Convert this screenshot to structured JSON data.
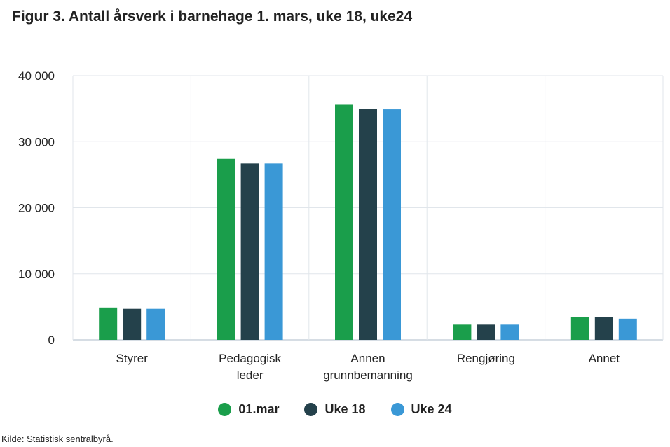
{
  "chart_data": {
    "type": "bar",
    "title": "Figur 3. Antall årsverk i barnehage 1. mars, uke 18, uke24",
    "categories": [
      [
        "Styrer"
      ],
      [
        "Pedagogisk",
        "leder"
      ],
      [
        "Annen",
        "grunnbemanning"
      ],
      [
        "Rengjøring"
      ],
      [
        "Annet"
      ]
    ],
    "series": [
      {
        "name": "01.mar",
        "color": "#1a9e4b",
        "values": [
          4900,
          27400,
          35600,
          2300,
          3400
        ]
      },
      {
        "name": "Uke 18",
        "color": "#24414b",
        "values": [
          4700,
          26700,
          35000,
          2300,
          3400
        ]
      },
      {
        "name": "Uke 24",
        "color": "#3a98d6",
        "values": [
          4700,
          26700,
          34900,
          2300,
          3200
        ]
      }
    ],
    "ylim": [
      0,
      40000
    ],
    "yticks": [
      0,
      10000,
      20000,
      30000,
      40000
    ],
    "ytick_labels": [
      "0",
      "10 000",
      "20 000",
      "30 000",
      "40 000"
    ],
    "grid": true,
    "legend_position": "bottom"
  },
  "source": "Kilde: Statistisk sentralbyrå."
}
